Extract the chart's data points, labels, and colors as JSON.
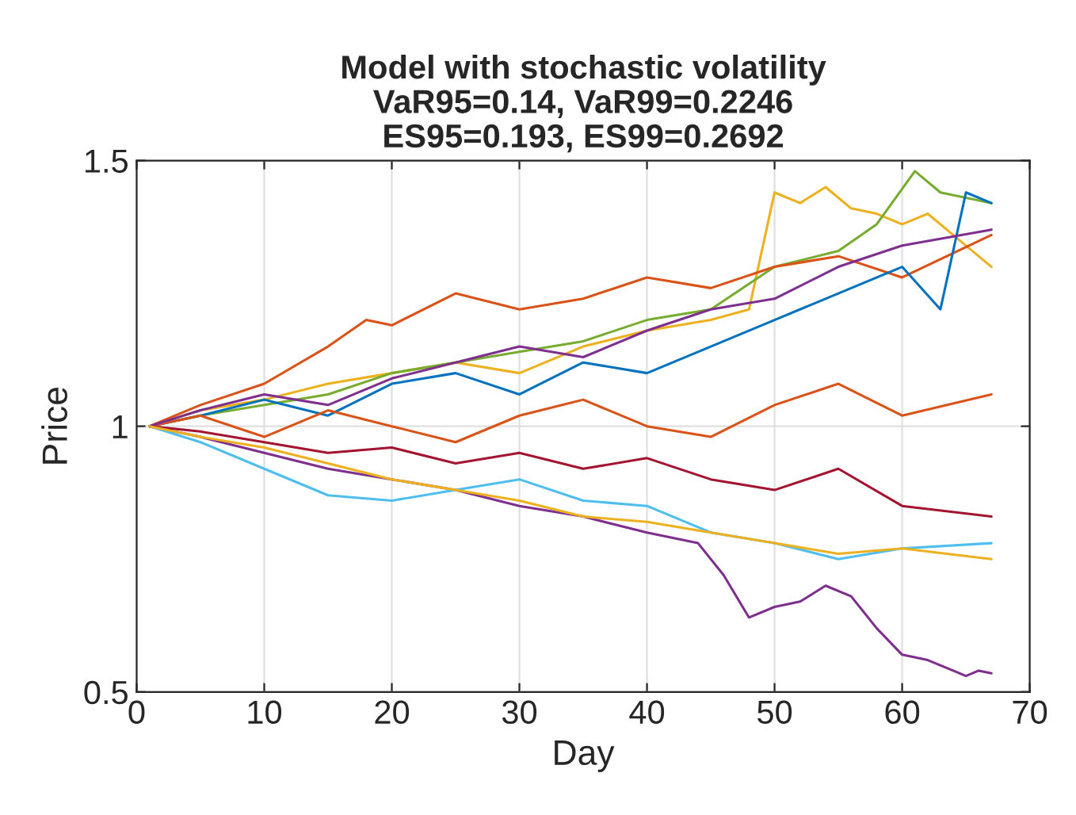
{
  "chart_data": {
    "type": "line",
    "title": "Model with stochastic volatility\nVaR95=0.14, VaR99=0.2246\nES95=0.193, ES99=0.2692",
    "xlabel": "Day",
    "ylabel": "Price",
    "xlim": [
      0,
      70
    ],
    "xticks": [
      0,
      10,
      20,
      30,
      40,
      50,
      60,
      70
    ],
    "ylim": [
      0.5,
      1.5
    ],
    "yticks": [
      0.5,
      1,
      1.5
    ],
    "grid": true,
    "line_style": "solid",
    "series": [
      {
        "color": "#edb120",
        "x": [
          1,
          5,
          10,
          15,
          20,
          25,
          30,
          35,
          40,
          45,
          48,
          50,
          52,
          54,
          56,
          58,
          60,
          62,
          64,
          67
        ],
        "values": [
          1,
          1.03,
          1.05,
          1.08,
          1.1,
          1.12,
          1.1,
          1.15,
          1.18,
          1.2,
          1.22,
          1.44,
          1.42,
          1.45,
          1.41,
          1.4,
          1.38,
          1.4,
          1.36,
          1.3
        ]
      },
      {
        "color": "#77ac30",
        "x": [
          1,
          5,
          10,
          15,
          20,
          25,
          30,
          35,
          40,
          45,
          50,
          55,
          58,
          61,
          63,
          67
        ],
        "values": [
          1,
          1.02,
          1.04,
          1.06,
          1.1,
          1.12,
          1.14,
          1.16,
          1.2,
          1.22,
          1.3,
          1.33,
          1.38,
          1.48,
          1.44,
          1.42
        ]
      },
      {
        "color": "#7e2f8e",
        "x": [
          1,
          5,
          10,
          15,
          20,
          25,
          30,
          35,
          40,
          44,
          46,
          48,
          50,
          52,
          54,
          56,
          58,
          60,
          62,
          64,
          65,
          66,
          67
        ],
        "values": [
          1,
          0.98,
          0.95,
          0.92,
          0.9,
          0.88,
          0.85,
          0.83,
          0.8,
          0.78,
          0.72,
          0.64,
          0.66,
          0.67,
          0.7,
          0.68,
          0.62,
          0.57,
          0.56,
          0.54,
          0.53,
          0.54,
          0.535
        ]
      },
      {
        "color": "#d95319",
        "x": [
          1,
          5,
          10,
          15,
          18,
          20,
          25,
          30,
          35,
          40,
          45,
          50,
          55,
          60,
          67
        ],
        "values": [
          1,
          1.04,
          1.08,
          1.15,
          1.2,
          1.19,
          1.25,
          1.22,
          1.24,
          1.28,
          1.26,
          1.3,
          1.32,
          1.28,
          1.36
        ]
      },
      {
        "color": "#0072bd",
        "x": [
          1,
          5,
          10,
          15,
          20,
          25,
          30,
          35,
          40,
          45,
          50,
          55,
          60,
          63,
          65,
          67
        ],
        "values": [
          1,
          1.02,
          1.05,
          1.02,
          1.08,
          1.1,
          1.06,
          1.12,
          1.1,
          1.15,
          1.2,
          1.25,
          1.3,
          1.22,
          1.44,
          1.42
        ]
      },
      {
        "color": "#4dbeee",
        "x": [
          1,
          5,
          10,
          15,
          20,
          25,
          30,
          35,
          40,
          45,
          50,
          55,
          60,
          67
        ],
        "values": [
          1,
          0.97,
          0.92,
          0.87,
          0.86,
          0.88,
          0.9,
          0.86,
          0.85,
          0.8,
          0.78,
          0.75,
          0.77,
          0.78
        ]
      },
      {
        "color": "#d95319",
        "x": [
          1,
          5,
          10,
          15,
          20,
          25,
          30,
          35,
          40,
          45,
          50,
          55,
          60,
          67
        ],
        "values": [
          1,
          1.02,
          0.98,
          1.03,
          1.0,
          0.97,
          1.02,
          1.05,
          1.0,
          0.98,
          1.04,
          1.08,
          1.02,
          1.06
        ]
      },
      {
        "color": "#a2142f",
        "x": [
          1,
          5,
          10,
          15,
          20,
          25,
          30,
          35,
          40,
          45,
          50,
          55,
          60,
          67
        ],
        "values": [
          1,
          0.99,
          0.97,
          0.95,
          0.96,
          0.93,
          0.95,
          0.92,
          0.94,
          0.9,
          0.88,
          0.92,
          0.85,
          0.83
        ]
      },
      {
        "color": "#7e2f8e",
        "x": [
          1,
          5,
          10,
          15,
          20,
          25,
          30,
          35,
          40,
          45,
          50,
          55,
          60,
          67
        ],
        "values": [
          1,
          1.03,
          1.06,
          1.04,
          1.09,
          1.12,
          1.15,
          1.13,
          1.18,
          1.22,
          1.24,
          1.3,
          1.34,
          1.37
        ]
      },
      {
        "color": "#edb120",
        "x": [
          1,
          5,
          10,
          15,
          20,
          25,
          30,
          35,
          40,
          45,
          50,
          55,
          60,
          67
        ],
        "values": [
          1,
          0.98,
          0.96,
          0.93,
          0.9,
          0.88,
          0.86,
          0.83,
          0.82,
          0.8,
          0.78,
          0.76,
          0.77,
          0.75
        ]
      }
    ]
  }
}
